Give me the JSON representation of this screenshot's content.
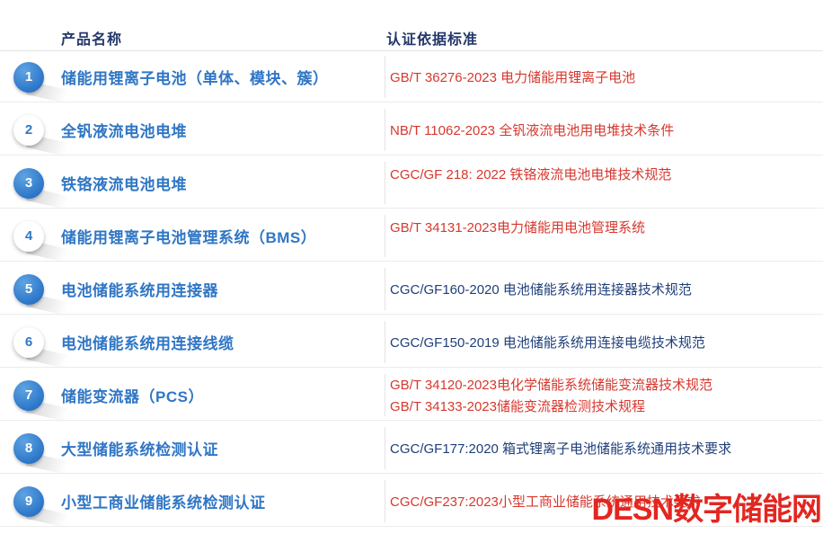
{
  "header": {
    "product_col": "产品名称",
    "standard_col": "认证依据标准"
  },
  "rows": [
    {
      "num": "1",
      "badge_style": "filled",
      "product": "储能用锂离子电池（单体、模块、簇）",
      "standards": [
        {
          "text": "GB/T 36276-2023 电力储能用锂离子电池",
          "color": "red"
        }
      ]
    },
    {
      "num": "2",
      "badge_style": "outline",
      "product": "全钒液流电池电堆",
      "standards": [
        {
          "text": "NB/T 11062-2023 全钒液流电池用电堆技术条件",
          "color": "red"
        }
      ]
    },
    {
      "num": "3",
      "badge_style": "filled",
      "product": "铁铬液流电池电堆",
      "standards": [
        {
          "text": "CGC/GF 218: 2022 铁铬液流电池电堆技术规范",
          "color": "red"
        }
      ]
    },
    {
      "num": "4",
      "badge_style": "outline",
      "product": "储能用锂离子电池管理系统（BMS）",
      "standards": [
        {
          "text": "GB/T 34131-2023电力储能用电池管理系统",
          "color": "red"
        }
      ]
    },
    {
      "num": "5",
      "badge_style": "filled",
      "product": "电池储能系统用连接器",
      "standards": [
        {
          "text": "CGC/GF160-2020 电池储能系统用连接器技术规范",
          "color": "navy"
        }
      ]
    },
    {
      "num": "6",
      "badge_style": "outline",
      "product": "电池储能系统用连接线缆",
      "standards": [
        {
          "text": "CGC/GF150-2019 电池储能系统用连接电缆技术规范",
          "color": "navy"
        }
      ]
    },
    {
      "num": "7",
      "badge_style": "filled",
      "product": "储能变流器（PCS）",
      "standards": [
        {
          "text": "GB/T 34120-2023电化学储能系统储能变流器技术规范",
          "color": "red"
        },
        {
          "text": "GB/T 34133-2023储能变流器检测技术规程",
          "color": "red"
        }
      ]
    },
    {
      "num": "8",
      "badge_style": "filled",
      "product": "大型储能系统检测认证",
      "standards": [
        {
          "text": "CGC/GF177:2020 箱式锂离子电池储能系统通用技术要求",
          "color": "navy"
        }
      ]
    },
    {
      "num": "9",
      "badge_style": "filled",
      "product": "小型工商业储能系统检测认证",
      "standards": [
        {
          "text": "CGC/GF237:2023小型工商业储能系统通用技术要求",
          "color": "red"
        }
      ]
    }
  ],
  "watermark": {
    "text": "DESN数字储能网",
    "color": "#e32620"
  },
  "colors": {
    "header_text": "#24386b",
    "product_text": "#2f76c5",
    "standard_red": "#d6382e",
    "standard_navy": "#1f3f7a",
    "badge_blue": "#2d78ca",
    "divider": "#e3e3e6",
    "watermark_red": "#e32620"
  }
}
